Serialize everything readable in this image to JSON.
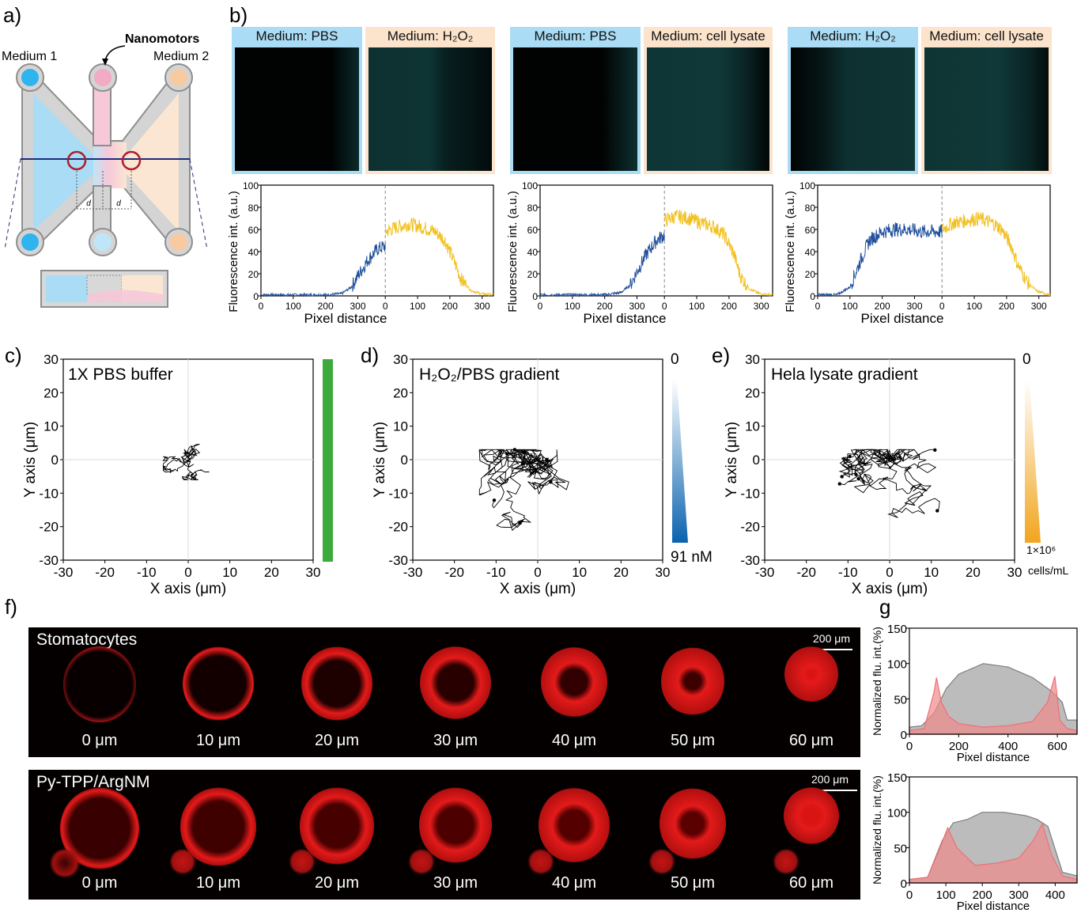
{
  "panels": {
    "a": "a)",
    "b": "b)",
    "c": "c)",
    "d": "d)",
    "e": "e)",
    "f": "f)",
    "g": "g"
  },
  "schematic": {
    "medium1": "Medium 1",
    "medium2": "Medium 2",
    "nanomotors": "Nanomotors",
    "d_label": "d"
  },
  "b_media": [
    {
      "left": "Medium: PBS",
      "right": "Medium: H₂O₂"
    },
    {
      "left": "Medium: PBS",
      "right": "Medium: cell lysate"
    },
    {
      "left": "Medium: H₂O₂",
      "right": "Medium: cell lysate"
    }
  ],
  "b_axes": {
    "ylabel": "Fluorescence int. (a.u.)",
    "xlabel": "Pixel distance",
    "yticks": [
      "0",
      "20",
      "40",
      "60",
      "80",
      "100"
    ],
    "xticks": [
      "0",
      "100",
      "200",
      "300",
      "0",
      "100",
      "200",
      "300"
    ]
  },
  "chart_data": [
    {
      "type": "line",
      "panel": "b-1",
      "xlabel": "Pixel distance",
      "ylabel": "Fluorescence int. (a.u.)",
      "ylim": [
        0,
        100
      ],
      "series": [
        {
          "color": "#1f4e9c",
          "x": [
            0,
            50,
            100,
            150,
            200,
            250,
            280,
            300,
            330,
            360,
            385
          ],
          "y": [
            1,
            1,
            1,
            1,
            1,
            2,
            8,
            18,
            32,
            42,
            45
          ]
        },
        {
          "color": "#f2c01f",
          "x": [
            385,
            420,
            460,
            500,
            540,
            570,
            600,
            620,
            650,
            680,
            720
          ],
          "y": [
            58,
            62,
            65,
            62,
            58,
            50,
            30,
            15,
            5,
            2,
            1
          ]
        }
      ]
    },
    {
      "type": "line",
      "panel": "b-2",
      "xlabel": "Pixel distance",
      "ylabel": "Fluorescence int. (a.u.)",
      "ylim": [
        0,
        100
      ],
      "series": [
        {
          "color": "#1f4e9c",
          "x": [
            0,
            50,
            100,
            150,
            200,
            250,
            280,
            300,
            330,
            360,
            385
          ],
          "y": [
            1,
            1,
            1,
            1,
            1,
            3,
            10,
            22,
            38,
            50,
            55
          ]
        },
        {
          "color": "#f2c01f",
          "x": [
            385,
            420,
            460,
            500,
            540,
            570,
            600,
            620,
            650,
            680,
            720
          ],
          "y": [
            68,
            72,
            70,
            66,
            62,
            55,
            38,
            18,
            6,
            2,
            1
          ]
        }
      ]
    },
    {
      "type": "line",
      "panel": "b-3",
      "xlabel": "Pixel distance",
      "ylabel": "Fluorescence int. (a.u.)",
      "ylim": [
        0,
        100
      ],
      "series": [
        {
          "color": "#1f4e9c",
          "x": [
            0,
            60,
            100,
            130,
            160,
            200,
            240,
            280,
            320,
            385
          ],
          "y": [
            1,
            1,
            8,
            30,
            50,
            58,
            60,
            60,
            58,
            58
          ]
        },
        {
          "color": "#f2c01f",
          "x": [
            385,
            420,
            460,
            500,
            540,
            570,
            600,
            620,
            650,
            680,
            720
          ],
          "y": [
            60,
            66,
            68,
            70,
            66,
            60,
            45,
            28,
            12,
            4,
            1
          ]
        }
      ]
    },
    {
      "type": "line",
      "panel": "c",
      "title": "1X PBS buffer",
      "xlabel": "X axis (μm)",
      "ylabel": "Y axis (μm)",
      "xlim": [
        -30,
        30
      ],
      "ylim": [
        -30,
        30
      ]
    },
    {
      "type": "line",
      "panel": "d",
      "title": "H₂O₂/PBS gradient",
      "xlabel": "X axis (μm)",
      "ylabel": "Y axis (μm)",
      "xlim": [
        -30,
        30
      ],
      "ylim": [
        -30,
        30
      ]
    },
    {
      "type": "line",
      "panel": "e",
      "title": "Hela lysate gradient",
      "xlabel": "X axis (μm)",
      "ylabel": "Y axis (μm)",
      "xlim": [
        -30,
        30
      ],
      "ylim": [
        -30,
        30
      ]
    },
    {
      "type": "area",
      "panel": "g-1",
      "xlabel": "Pixel distance",
      "ylabel": "Normalized flu. int.(%)",
      "ylim": [
        0,
        150
      ],
      "series": [
        {
          "color": "#a6a6a6",
          "x": [
            0,
            50,
            100,
            150,
            200,
            300,
            400,
            500,
            580,
            620,
            640,
            680
          ],
          "y": [
            10,
            12,
            30,
            65,
            85,
            100,
            95,
            80,
            60,
            45,
            20,
            20
          ]
        },
        {
          "color": "#f08a8a",
          "x": [
            0,
            60,
            100,
            110,
            130,
            160,
            200,
            300,
            400,
            500,
            560,
            590,
            610,
            640,
            680
          ],
          "y": [
            5,
            8,
            60,
            80,
            45,
            25,
            15,
            10,
            12,
            18,
            45,
            82,
            20,
            8,
            5
          ]
        }
      ]
    },
    {
      "type": "area",
      "panel": "g-2",
      "xlabel": "Pixel distance",
      "ylabel": "Normalized flu. int.(%)",
      "ylim": [
        0,
        150
      ],
      "series": [
        {
          "color": "#a6a6a6",
          "x": [
            0,
            50,
            90,
            120,
            160,
            200,
            260,
            320,
            350,
            380,
            420,
            460
          ],
          "y": [
            5,
            8,
            60,
            85,
            90,
            100,
            100,
            95,
            90,
            80,
            15,
            10
          ]
        },
        {
          "color": "#f08a8a",
          "x": [
            0,
            50,
            80,
            105,
            130,
            180,
            240,
            300,
            340,
            365,
            390,
            420,
            460
          ],
          "y": [
            5,
            8,
            45,
            78,
            50,
            25,
            28,
            35,
            60,
            84,
            40,
            10,
            5
          ]
        }
      ]
    }
  ],
  "traj_axes": {
    "xlabel": "X axis (μm)",
    "ylabel": "Y axis (μm)",
    "ticks": [
      "-30",
      "-20",
      "-10",
      "0",
      "10",
      "20",
      "30"
    ]
  },
  "c": {
    "title": "1X PBS buffer",
    "bar_color": "#3cab3c"
  },
  "d": {
    "title": "H₂O₂/PBS gradient",
    "scale_top": "0",
    "scale_bottom": "91 nM"
  },
  "e": {
    "title": "Hela lysate gradient",
    "scale_top": "0",
    "scale_bottom": "1×10⁶",
    "scale_unit": "cells/mL"
  },
  "f": {
    "rows": [
      {
        "caption": "Stomatocytes",
        "scalebar": "200 μm",
        "labels": [
          "0 μm",
          "10 μm",
          "20 μm",
          "30 μm",
          "40 μm",
          "50 μm",
          "60 μm"
        ]
      },
      {
        "caption": "Py-TPP/ArgNM",
        "scalebar": "200 μm",
        "labels": [
          "0 μm",
          "10 μm",
          "20 μm",
          "30 μm",
          "40 μm",
          "50 μm",
          "60 μm"
        ]
      }
    ]
  },
  "g_axes": {
    "ylabel": "Normalized flu. int.(%)",
    "xlabel": "Pixel distance",
    "yticks": [
      "0",
      "50",
      "100",
      "150"
    ],
    "xticks1": [
      "0",
      "200",
      "400",
      "600"
    ],
    "xticks2": [
      "0",
      "100",
      "200",
      "300",
      "400"
    ]
  }
}
